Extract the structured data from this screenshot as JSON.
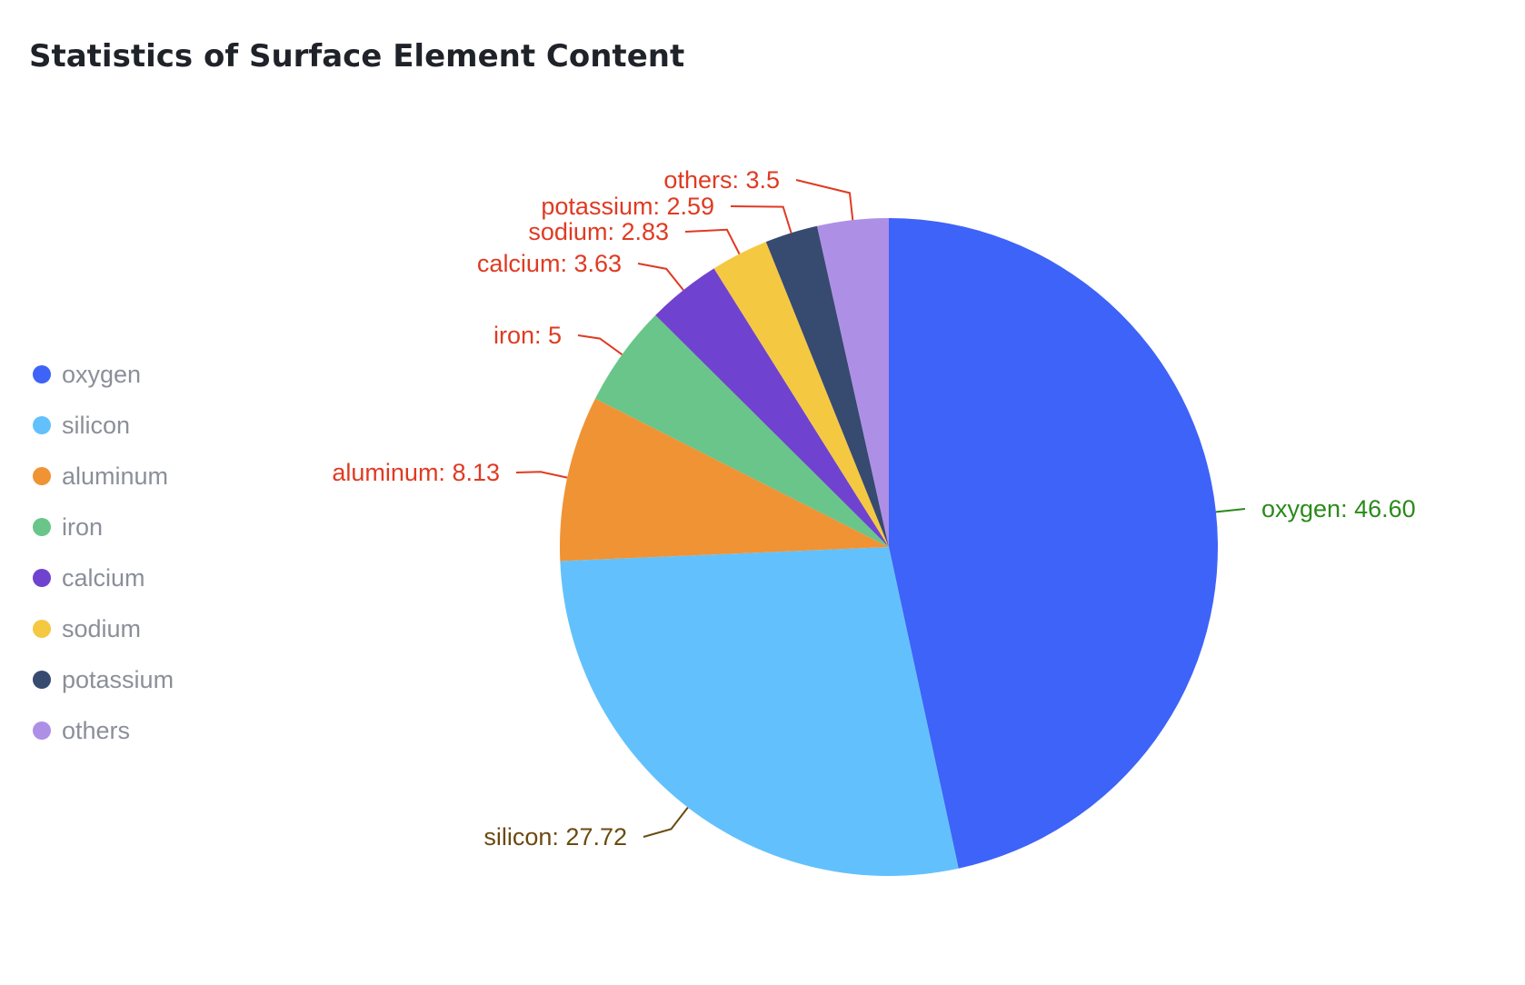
{
  "chart_data": {
    "type": "pie",
    "title": "Statistics of Surface Element Content",
    "legend_position": "left",
    "slices": [
      {
        "name": "oxygen",
        "value": 46.6,
        "label": "oxygen: 46.60",
        "color": "#3e63f8",
        "label_color": "#2a8a1a"
      },
      {
        "name": "silicon",
        "value": 27.72,
        "label": "silicon: 27.72",
        "color": "#62c1fc",
        "label_color": "#6b4a10"
      },
      {
        "name": "aluminum",
        "value": 8.13,
        "label": "aluminum: 8.13",
        "color": "#f09334",
        "label_color": "#e03a22"
      },
      {
        "name": "iron",
        "value": 5,
        "label": "iron: 5",
        "color": "#69c589",
        "label_color": "#e03a22"
      },
      {
        "name": "calcium",
        "value": 3.63,
        "label": "calcium: 3.63",
        "color": "#6f43cf",
        "label_color": "#e03a22"
      },
      {
        "name": "sodium",
        "value": 2.83,
        "label": "sodium: 2.83",
        "color": "#f5c842",
        "label_color": "#e03a22"
      },
      {
        "name": "potassium",
        "value": 2.59,
        "label": "potassium: 2.59",
        "color": "#374a70",
        "label_color": "#e03a22"
      },
      {
        "name": "others",
        "value": 3.5,
        "label": "others: 3.5",
        "color": "#ae8fe6",
        "label_color": "#e03a22"
      }
    ]
  }
}
